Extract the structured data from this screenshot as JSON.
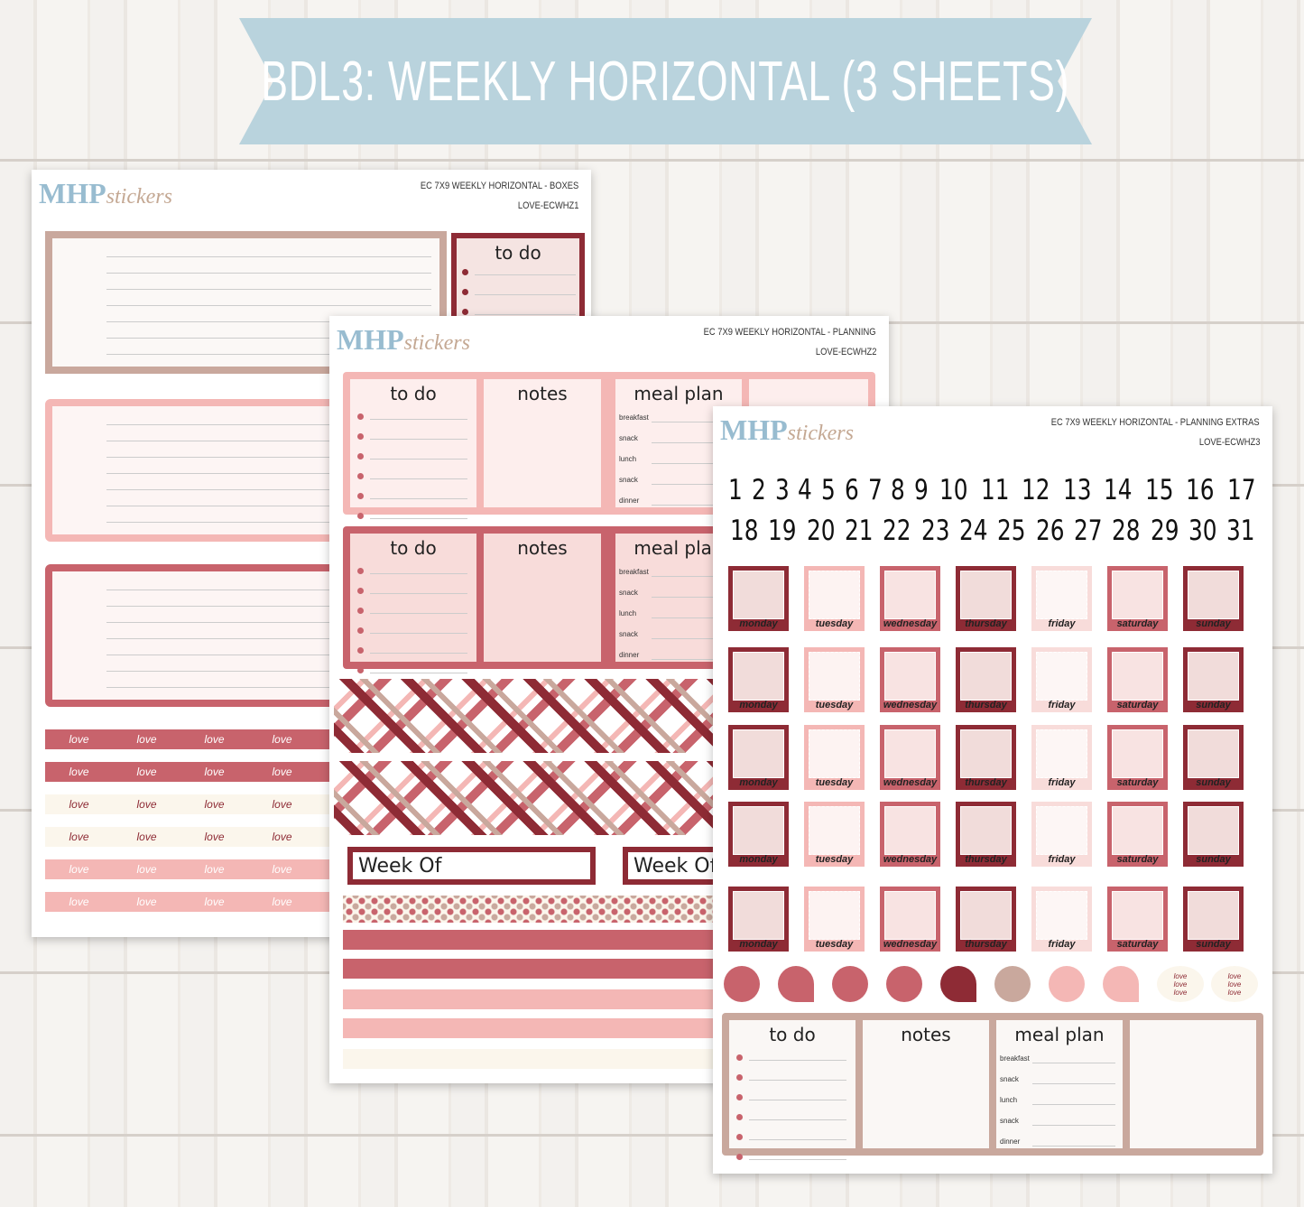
{
  "banner": {
    "title": "BDL3: WEEKLY HORIZONTAL (3 SHEETS)"
  },
  "brand": {
    "name": "MHP",
    "script": "stickers"
  },
  "sheets": [
    {
      "title": "EC 7X9 WEEKLY HORIZONTAL - BOXES",
      "code": "LOVE-ECWHZ1",
      "todo": "to do",
      "washi": "love"
    },
    {
      "title": "EC 7X9 WEEKLY HORIZONTAL - PLANNING",
      "code": "LOVE-ECWHZ2",
      "panels": [
        "to do",
        "notes",
        "meal plan"
      ],
      "meals": [
        "breakfast",
        "snack",
        "lunch",
        "snack",
        "dinner"
      ],
      "week_of": "Week Of"
    },
    {
      "title": "EC 7X9 WEEKLY HORIZONTAL - PLANNING EXTRAS",
      "code": "LOVE-ECWHZ3",
      "numbers": [
        1,
        2,
        3,
        4,
        5,
        6,
        7,
        8,
        9,
        10,
        11,
        12,
        13,
        14,
        15,
        16,
        17,
        18,
        19,
        20,
        21,
        22,
        23,
        24,
        25,
        26,
        27,
        28,
        29,
        30,
        31
      ],
      "days": [
        "monday",
        "tuesday",
        "wednesday",
        "thursday",
        "friday",
        "saturday",
        "sunday"
      ],
      "panels": [
        "to do",
        "notes",
        "meal plan"
      ],
      "meals": [
        "breakfast",
        "snack",
        "lunch",
        "snack",
        "dinner"
      ],
      "washi": "love"
    }
  ]
}
